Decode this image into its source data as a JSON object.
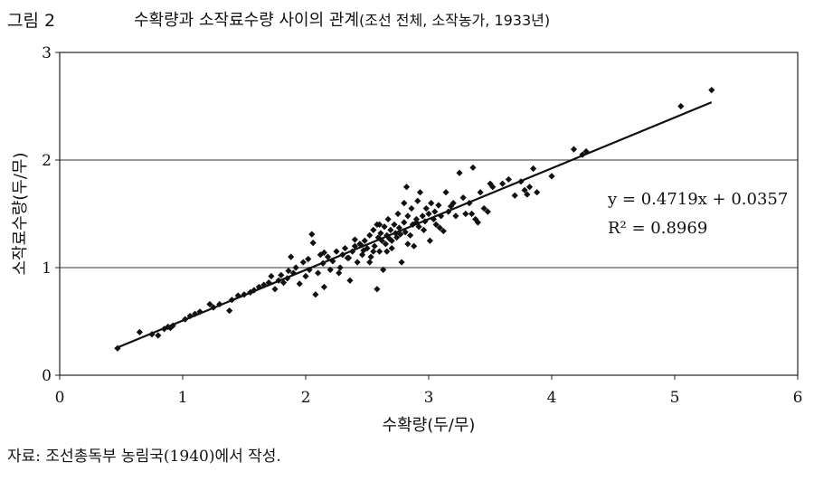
{
  "figure": {
    "label": "그림 2",
    "title": "수확량과 소작료수량 사이의 관계",
    "subtitle": "(조선 전체, 소작농가, 1933년)",
    "source": "자료: 조선총독부 농림국(1940)에서 작성."
  },
  "chart_data": {
    "type": "scatter",
    "xlabel": "수확량(두/무)",
    "ylabel": "소작료수량(두/무)",
    "xlim": [
      0,
      6
    ],
    "ylim": [
      0,
      3
    ],
    "xticks": [
      "0",
      "1",
      "2",
      "3",
      "4",
      "5",
      "6"
    ],
    "yticks": [
      "0",
      "1",
      "2",
      "3"
    ],
    "grid": "horizontal at y=1,2",
    "marker_color": "#111111",
    "trendline": {
      "slope": 0.4719,
      "intercept": 0.0357,
      "x_range": [
        0.45,
        5.3
      ]
    },
    "annotations": {
      "equation": "y = 0.4719x + 0.0357",
      "r_squared": "R² = 0.8969"
    },
    "points": [
      [
        0.47,
        0.25
      ],
      [
        0.65,
        0.4
      ],
      [
        0.75,
        0.38
      ],
      [
        0.8,
        0.37
      ],
      [
        0.85,
        0.43
      ],
      [
        0.88,
        0.45
      ],
      [
        0.9,
        0.44
      ],
      [
        0.92,
        0.46
      ],
      [
        1.02,
        0.52
      ],
      [
        1.06,
        0.55
      ],
      [
        1.1,
        0.57
      ],
      [
        1.14,
        0.59
      ],
      [
        1.22,
        0.66
      ],
      [
        1.25,
        0.63
      ],
      [
        1.3,
        0.66
      ],
      [
        1.38,
        0.6
      ],
      [
        1.4,
        0.7
      ],
      [
        1.45,
        0.74
      ],
      [
        1.5,
        0.75
      ],
      [
        1.55,
        0.77
      ],
      [
        1.58,
        0.79
      ],
      [
        1.62,
        0.82
      ],
      [
        1.66,
        0.84
      ],
      [
        1.7,
        0.86
      ],
      [
        1.72,
        0.92
      ],
      [
        1.75,
        0.8
      ],
      [
        1.78,
        0.88
      ],
      [
        1.8,
        0.93
      ],
      [
        1.82,
        0.86
      ],
      [
        1.85,
        0.9
      ],
      [
        1.88,
        1.1
      ],
      [
        1.9,
        0.95
      ],
      [
        1.92,
        1.0
      ],
      [
        1.95,
        0.85
      ],
      [
        1.98,
        1.05
      ],
      [
        2.0,
        0.92
      ],
      [
        2.02,
        1.08
      ],
      [
        2.03,
        0.98
      ],
      [
        2.05,
        1.31
      ],
      [
        2.06,
        1.23
      ],
      [
        2.08,
        0.75
      ],
      [
        2.1,
        0.95
      ],
      [
        2.12,
        1.12
      ],
      [
        2.14,
        1.04
      ],
      [
        2.15,
        0.82
      ],
      [
        2.18,
        1.1
      ],
      [
        2.2,
        0.98
      ],
      [
        2.22,
        1.06
      ],
      [
        2.25,
        1.15
      ],
      [
        2.27,
        0.95
      ],
      [
        2.3,
        1.12
      ],
      [
        2.32,
        1.18
      ],
      [
        2.34,
        1.09
      ],
      [
        2.36,
        0.88
      ],
      [
        2.38,
        1.15
      ],
      [
        2.4,
        1.2
      ],
      [
        2.42,
        1.05
      ],
      [
        2.44,
        1.22
      ],
      [
        2.46,
        1.12
      ],
      [
        2.48,
        1.25
      ],
      [
        2.5,
        1.18
      ],
      [
        2.52,
        1.3
      ],
      [
        2.53,
        1.1
      ],
      [
        2.55,
        1.35
      ],
      [
        2.56,
        1.2
      ],
      [
        2.58,
        1.4
      ],
      [
        2.59,
        1.28
      ],
      [
        2.6,
        1.15
      ],
      [
        2.61,
        1.32
      ],
      [
        2.62,
        1.25
      ],
      [
        2.63,
        0.98
      ],
      [
        2.64,
        1.38
      ],
      [
        2.65,
        1.22
      ],
      [
        2.66,
        1.3
      ],
      [
        2.67,
        1.45
      ],
      [
        2.68,
        1.27
      ],
      [
        2.69,
        1.35
      ],
      [
        2.7,
        1.18
      ],
      [
        2.72,
        1.4
      ],
      [
        2.73,
        1.32
      ],
      [
        2.74,
        1.28
      ],
      [
        2.75,
        1.5
      ],
      [
        2.76,
        1.37
      ],
      [
        2.78,
        1.05
      ],
      [
        2.8,
        1.42
      ],
      [
        2.81,
        1.33
      ],
      [
        2.82,
        1.75
      ],
      [
        2.83,
        1.48
      ],
      [
        2.85,
        1.3
      ],
      [
        2.86,
        1.55
      ],
      [
        2.87,
        1.4
      ],
      [
        2.88,
        1.2
      ],
      [
        2.9,
        1.45
      ],
      [
        2.91,
        1.62
      ],
      [
        2.92,
        1.38
      ],
      [
        2.93,
        1.7
      ],
      [
        2.95,
        1.48
      ],
      [
        2.96,
        1.35
      ],
      [
        2.98,
        1.55
      ],
      [
        3.0,
        1.5
      ],
      [
        3.01,
        1.25
      ],
      [
        3.02,
        1.6
      ],
      [
        3.04,
        1.45
      ],
      [
        3.05,
        1.52
      ],
      [
        3.06,
        1.4
      ],
      [
        3.08,
        1.58
      ],
      [
        3.1,
        1.48
      ],
      [
        3.12,
        1.34
      ],
      [
        3.14,
        1.7
      ],
      [
        3.16,
        1.52
      ],
      [
        3.2,
        1.6
      ],
      [
        3.22,
        1.48
      ],
      [
        3.25,
        1.88
      ],
      [
        3.28,
        1.65
      ],
      [
        3.3,
        1.5
      ],
      [
        3.33,
        1.6
      ],
      [
        3.36,
        1.93
      ],
      [
        3.38,
        1.45
      ],
      [
        3.4,
        1.42
      ],
      [
        3.42,
        1.7
      ],
      [
        3.45,
        1.55
      ],
      [
        3.48,
        1.52
      ],
      [
        3.5,
        1.78
      ],
      [
        3.52,
        1.75
      ],
      [
        3.6,
        1.78
      ],
      [
        3.65,
        1.82
      ],
      [
        3.7,
        1.67
      ],
      [
        3.75,
        1.8
      ],
      [
        3.78,
        1.72
      ],
      [
        3.8,
        1.68
      ],
      [
        3.82,
        1.75
      ],
      [
        3.85,
        1.92
      ],
      [
        3.88,
        1.7
      ],
      [
        4.0,
        1.85
      ],
      [
        4.18,
        2.1
      ],
      [
        4.25,
        2.05
      ],
      [
        4.28,
        2.08
      ],
      [
        5.05,
        2.5
      ],
      [
        5.3,
        2.65
      ],
      [
        1.86,
        0.97
      ],
      [
        2.4,
        1.26
      ],
      [
        2.28,
        1.0
      ],
      [
        2.58,
        0.8
      ],
      [
        2.47,
        1.16
      ],
      [
        2.77,
        1.31
      ],
      [
        2.97,
        1.43
      ],
      [
        3.09,
        1.37
      ],
      [
        2.35,
        1.09
      ],
      [
        2.15,
        1.14
      ],
      [
        2.55,
        1.15
      ],
      [
        2.8,
        1.6
      ],
      [
        2.9,
        1.42
      ],
      [
        2.6,
        1.4
      ],
      [
        2.7,
        1.25
      ],
      [
        2.45,
        1.21
      ],
      [
        3.18,
        1.57
      ],
      [
        3.35,
        1.5
      ],
      [
        2.83,
        1.22
      ],
      [
        2.52,
        1.05
      ],
      [
        2.66,
        1.15
      ]
    ]
  }
}
